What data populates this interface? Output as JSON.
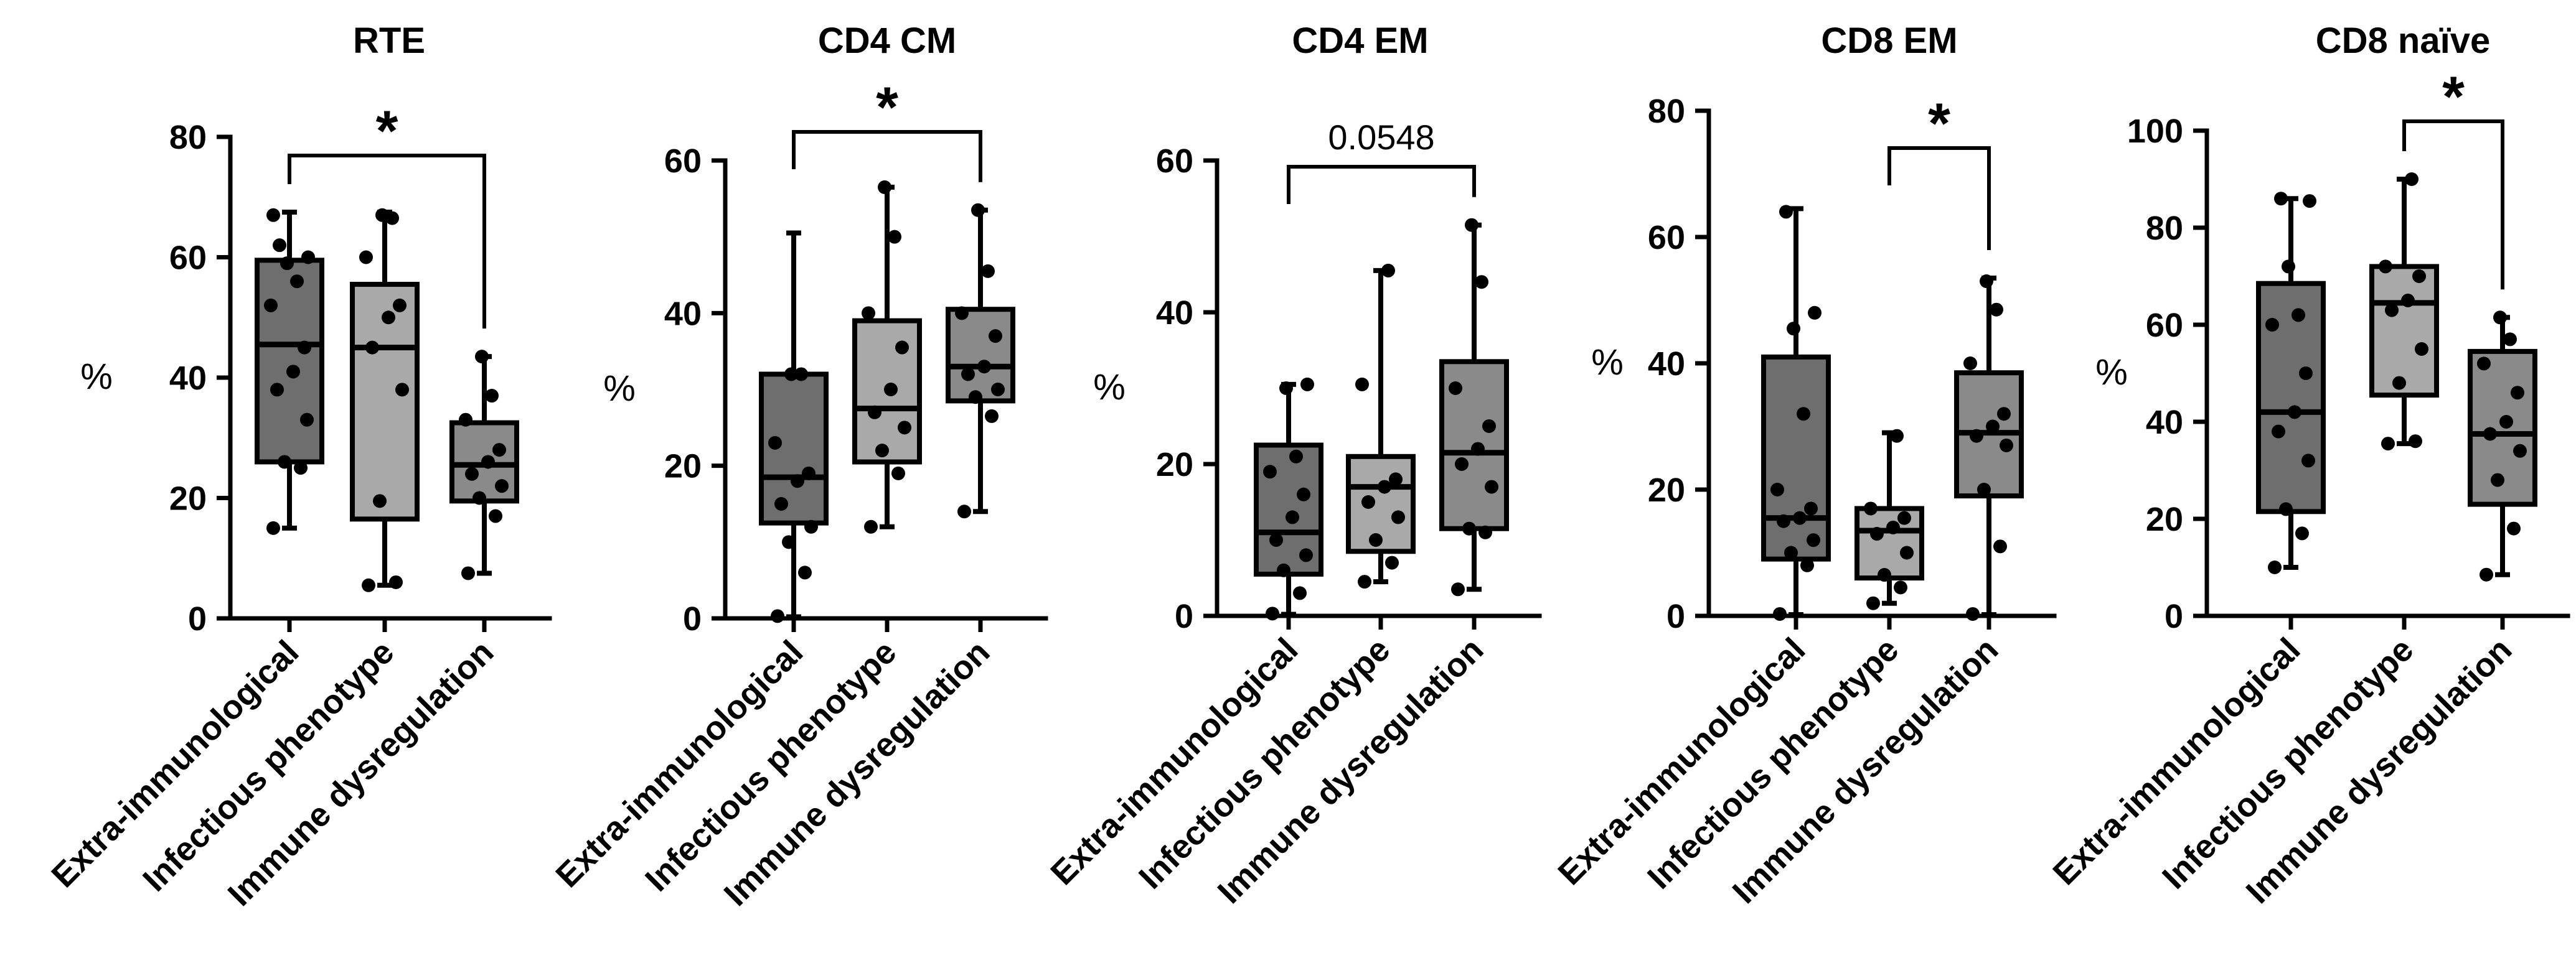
{
  "chart_data": [
    {
      "type": "box",
      "title": "RTE",
      "ylabel": "%",
      "ylim": [
        0,
        80
      ],
      "yticks": [
        "0",
        "20",
        "40",
        "60",
        "80"
      ],
      "categories": [
        "Extra-immunological",
        "Infectious phenotype",
        "Immune dysregulation"
      ],
      "series": [
        {
          "name": "Extra-immunological",
          "color": "#6e6e6e",
          "min": 15,
          "q1": 26,
          "median": 45.5,
          "q3": 59.5,
          "max": 67.5,
          "points": [
            15,
            25,
            26,
            33,
            38,
            41,
            45,
            52,
            56,
            59,
            60,
            62,
            67
          ]
        },
        {
          "name": "Infectious phenotype",
          "color": "#a9a9a9",
          "min": 5.5,
          "q1": 16.5,
          "median": 45,
          "q3": 55.5,
          "max": 67.5,
          "points": [
            5.5,
            6,
            19.5,
            38,
            45,
            50,
            52,
            60,
            66.5,
            67
          ]
        },
        {
          "name": "Immune dysregulation",
          "color": "#8a8a8a",
          "min": 7.5,
          "q1": 19.5,
          "median": 25.5,
          "q3": 32.5,
          "max": 43.5,
          "points": [
            7.5,
            17,
            20,
            22,
            24,
            26,
            28,
            33,
            37,
            43.5
          ]
        }
      ],
      "significance": {
        "from": 0,
        "to": 2,
        "label": "*"
      }
    },
    {
      "type": "box",
      "title": "CD4 CM",
      "ylabel": "%",
      "ylim": [
        0,
        60
      ],
      "yticks": [
        "0",
        "20",
        "40",
        "60"
      ],
      "categories": [
        "Extra-immunological",
        "Infectious phenotype",
        "Immune dysregulation"
      ],
      "series": [
        {
          "name": "Extra-immunological",
          "color": "#6e6e6e",
          "min": 0.2,
          "q1": 12.5,
          "median": 18.5,
          "q3": 32,
          "max": 50.5,
          "points": [
            0.3,
            6,
            10,
            12,
            15,
            18,
            19,
            23,
            32,
            32
          ]
        },
        {
          "name": "Infectious phenotype",
          "color": "#a9a9a9",
          "min": 12,
          "q1": 20.5,
          "median": 27.5,
          "q3": 39,
          "max": 56.5,
          "points": [
            12,
            19,
            22,
            25,
            27,
            30,
            35.5,
            40,
            50,
            56.5
          ]
        },
        {
          "name": "Immune dysregulation",
          "color": "#8a8a8a",
          "min": 14,
          "q1": 28.5,
          "median": 33,
          "q3": 40.5,
          "max": 53.5,
          "points": [
            14,
            26.5,
            29,
            30,
            32,
            33,
            37,
            40,
            45.5,
            53.5
          ]
        }
      ],
      "significance": {
        "from": 0,
        "to": 2,
        "label": "*"
      }
    },
    {
      "type": "box",
      "title": "CD4 EM",
      "ylabel": "%",
      "ylim": [
        0,
        60
      ],
      "yticks": [
        "0",
        "20",
        "40",
        "60"
      ],
      "categories": [
        "Extra-immunological",
        "Infectious phenotype",
        "Immune dysregulation"
      ],
      "series": [
        {
          "name": "Extra-immunological",
          "color": "#6e6e6e",
          "min": 0.2,
          "q1": 5.5,
          "median": 11,
          "q3": 22.5,
          "max": 30.5,
          "points": [
            0.3,
            3,
            6,
            8,
            10,
            13,
            16,
            19,
            21,
            30,
            30.5
          ]
        },
        {
          "name": "Infectious phenotype",
          "color": "#a9a9a9",
          "min": 4.5,
          "q1": 8.5,
          "median": 17,
          "q3": 21,
          "max": 45.5,
          "points": [
            4.5,
            7,
            10,
            13,
            15,
            17,
            18,
            30.5,
            45.5
          ]
        },
        {
          "name": "Immune dysregulation",
          "color": "#8a8a8a",
          "min": 3.5,
          "q1": 11.5,
          "median": 21.5,
          "q3": 33.5,
          "max": 51.5,
          "points": [
            3.5,
            11,
            11.5,
            17,
            20,
            22,
            25,
            30,
            44,
            51.5
          ]
        }
      ],
      "significance": {
        "from": 0,
        "to": 2,
        "label": "0.0548"
      }
    },
    {
      "type": "box",
      "title": "CD8 EM",
      "ylabel": "%",
      "ylim": [
        0,
        80
      ],
      "yticks": [
        "0",
        "20",
        "40",
        "60",
        "80"
      ],
      "categories": [
        "Extra-immunological",
        "Infectious phenotype",
        "Immune dysregulation"
      ],
      "series": [
        {
          "name": "Extra-immunological",
          "color": "#6e6e6e",
          "min": 0.2,
          "q1": 9,
          "median": 15.5,
          "q3": 41,
          "max": 64.5,
          "points": [
            0.3,
            8,
            10,
            12,
            15,
            15.5,
            17,
            20,
            32,
            45.5,
            48,
            64
          ]
        },
        {
          "name": "Infectious phenotype",
          "color": "#a9a9a9",
          "min": 2,
          "q1": 6,
          "median": 13.5,
          "q3": 17,
          "max": 29,
          "points": [
            2,
            4.5,
            6.5,
            10,
            13,
            14,
            15.5,
            17,
            28.5
          ]
        },
        {
          "name": "Immune dysregulation",
          "color": "#8a8a8a",
          "min": 0.2,
          "q1": 19,
          "median": 29,
          "q3": 38.5,
          "max": 53.5,
          "points": [
            0.3,
            11,
            20,
            27,
            28.5,
            30,
            32,
            40,
            48.5,
            53
          ]
        }
      ],
      "significance": {
        "from": 1,
        "to": 2,
        "label": "*"
      }
    },
    {
      "type": "box",
      "title": "CD8 naïve",
      "ylabel": "%",
      "ylim": [
        0,
        100
      ],
      "yticks": [
        "0",
        "20",
        "40",
        "60",
        "80",
        "100"
      ],
      "categories": [
        "Extra-immunological",
        "Infectious phenotype",
        "Immune dysregulation"
      ],
      "series": [
        {
          "name": "Extra-immunological",
          "color": "#6e6e6e",
          "min": 10,
          "q1": 21.5,
          "median": 42,
          "q3": 68.5,
          "max": 86,
          "points": [
            10,
            17,
            22,
            32,
            38,
            42,
            50,
            60,
            62,
            72,
            85.5,
            86
          ]
        },
        {
          "name": "Infectious phenotype",
          "color": "#a9a9a9",
          "min": 35.5,
          "q1": 45.5,
          "median": 64.5,
          "q3": 72,
          "max": 90,
          "points": [
            35.5,
            36,
            48,
            55,
            63,
            65,
            70,
            72,
            90
          ]
        },
        {
          "name": "Immune dysregulation",
          "color": "#8a8a8a",
          "min": 8.5,
          "q1": 23,
          "median": 37.5,
          "q3": 54.5,
          "max": 61.5,
          "points": [
            8.5,
            18,
            28,
            34,
            37.5,
            40,
            46,
            52,
            57,
            61.5
          ]
        }
      ],
      "significance": {
        "from": 1,
        "to": 2,
        "label": "*"
      }
    }
  ]
}
